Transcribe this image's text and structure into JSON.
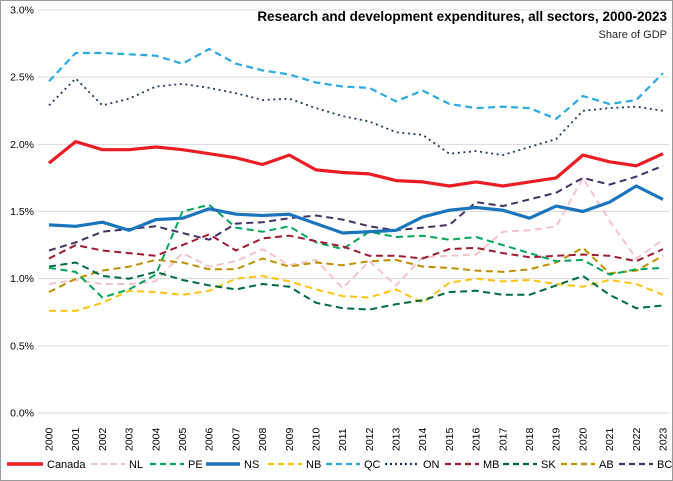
{
  "chart_data": {
    "type": "line",
    "title": "Research and development expenditures, all sectors, 2000-2023",
    "subtitle": "Share of GDP",
    "xlabel": "",
    "ylabel": "",
    "ylim": [
      0,
      3
    ],
    "grid": "horizontal",
    "legend_position": "bottom",
    "y_tick_labels": [
      "0.0%",
      "0.5%",
      "1.0%",
      "1.5%",
      "2.0%",
      "2.5%",
      "3.0%"
    ],
    "y_tick_values": [
      0,
      0.5,
      1,
      1.5,
      2,
      2.5,
      3
    ],
    "x": [
      2000,
      2001,
      2002,
      2003,
      2004,
      2005,
      2006,
      2007,
      2008,
      2009,
      2010,
      2011,
      2012,
      2013,
      2014,
      2015,
      2016,
      2017,
      2018,
      2019,
      2020,
      2021,
      2022,
      2023
    ],
    "series": [
      {
        "name": "Canada",
        "color": "#ec1c24",
        "style": "solid",
        "values": [
          1.86,
          2.02,
          1.96,
          1.96,
          1.98,
          1.96,
          1.93,
          1.9,
          1.85,
          1.92,
          1.81,
          1.79,
          1.78,
          1.73,
          1.72,
          1.69,
          1.72,
          1.69,
          1.72,
          1.75,
          1.92,
          1.87,
          1.84,
          1.93
        ]
      },
      {
        "name": "NL",
        "color": "#f5c3cb",
        "style": "dashed",
        "values": [
          0.96,
          0.99,
          0.96,
          0.96,
          0.98,
          1.19,
          1.09,
          1.13,
          1.22,
          1.1,
          1.14,
          0.93,
          1.13,
          0.95,
          1.16,
          1.17,
          1.18,
          1.35,
          1.36,
          1.39,
          1.75,
          1.43,
          1.15,
          1.29
        ]
      },
      {
        "name": "PE",
        "color": "#00a65a",
        "style": "dashed",
        "values": [
          1.08,
          1.05,
          0.86,
          0.92,
          1.03,
          1.5,
          1.55,
          1.38,
          1.35,
          1.39,
          1.27,
          1.22,
          1.35,
          1.31,
          1.32,
          1.29,
          1.31,
          1.25,
          1.19,
          1.13,
          1.14,
          1.03,
          1.07,
          1.08
        ]
      },
      {
        "name": "NS",
        "color": "#1b75bc",
        "style": "solid",
        "values": [
          1.4,
          1.39,
          1.42,
          1.36,
          1.44,
          1.45,
          1.52,
          1.48,
          1.47,
          1.48,
          1.41,
          1.34,
          1.35,
          1.36,
          1.46,
          1.51,
          1.53,
          1.51,
          1.45,
          1.54,
          1.5,
          1.57,
          1.69,
          1.59
        ]
      },
      {
        "name": "NB",
        "color": "#ffc20e",
        "style": "dashed",
        "values": [
          0.76,
          0.76,
          0.82,
          0.91,
          0.9,
          0.88,
          0.91,
          1.0,
          1.02,
          0.98,
          0.92,
          0.87,
          0.86,
          0.92,
          0.82,
          0.97,
          1.0,
          0.98,
          0.99,
          0.96,
          0.94,
          0.99,
          0.96,
          0.88
        ]
      },
      {
        "name": "QC",
        "color": "#29abe2",
        "style": "dashed",
        "values": [
          2.47,
          2.68,
          2.68,
          2.67,
          2.66,
          2.6,
          2.71,
          2.6,
          2.55,
          2.52,
          2.46,
          2.43,
          2.42,
          2.32,
          2.4,
          2.3,
          2.27,
          2.28,
          2.27,
          2.19,
          2.36,
          2.3,
          2.33,
          2.53
        ]
      },
      {
        "name": "ON",
        "color": "#203864",
        "style": "dotted",
        "values": [
          2.29,
          2.49,
          2.29,
          2.34,
          2.43,
          2.45,
          2.42,
          2.38,
          2.33,
          2.34,
          2.27,
          2.21,
          2.17,
          2.09,
          2.07,
          1.93,
          1.95,
          1.92,
          1.98,
          2.04,
          2.25,
          2.27,
          2.28,
          2.25
        ]
      },
      {
        "name": "MB",
        "color": "#9e1b32",
        "style": "dashed",
        "values": [
          1.15,
          1.25,
          1.21,
          1.19,
          1.17,
          1.25,
          1.33,
          1.21,
          1.3,
          1.32,
          1.28,
          1.24,
          1.17,
          1.17,
          1.15,
          1.22,
          1.23,
          1.19,
          1.16,
          1.17,
          1.18,
          1.17,
          1.13,
          1.22
        ]
      },
      {
        "name": "SK",
        "color": "#006b3f",
        "style": "dashed",
        "values": [
          1.09,
          1.12,
          1.02,
          1.0,
          1.05,
          0.99,
          0.95,
          0.92,
          0.96,
          0.94,
          0.82,
          0.78,
          0.77,
          0.81,
          0.84,
          0.9,
          0.91,
          0.88,
          0.88,
          0.95,
          1.02,
          0.88,
          0.78,
          0.8
        ]
      },
      {
        "name": "AB",
        "color": "#bf9000",
        "style": "dashed",
        "values": [
          0.9,
          1.0,
          1.06,
          1.09,
          1.14,
          1.12,
          1.07,
          1.07,
          1.15,
          1.09,
          1.12,
          1.1,
          1.13,
          1.14,
          1.09,
          1.08,
          1.06,
          1.05,
          1.07,
          1.12,
          1.23,
          1.04,
          1.06,
          1.17
        ]
      },
      {
        "name": "BC",
        "color": "#443266",
        "style": "dashed",
        "values": [
          1.21,
          1.27,
          1.35,
          1.37,
          1.39,
          1.34,
          1.29,
          1.41,
          1.42,
          1.45,
          1.47,
          1.44,
          1.39,
          1.36,
          1.38,
          1.4,
          1.57,
          1.54,
          1.59,
          1.64,
          1.75,
          1.7,
          1.76,
          1.84
        ]
      }
    ]
  }
}
